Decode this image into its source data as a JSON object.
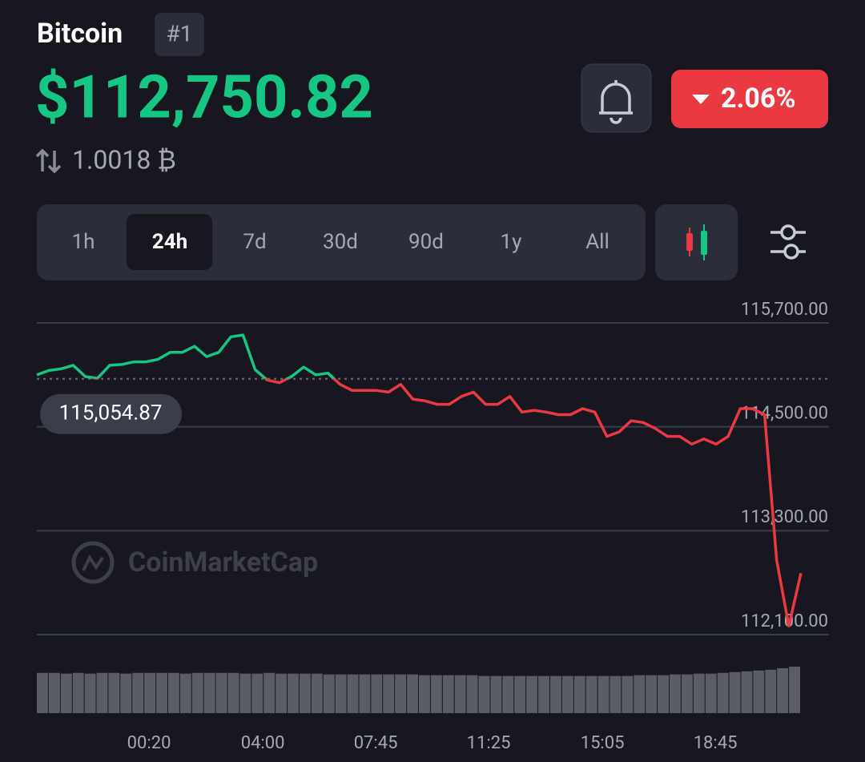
{
  "header": {
    "title": "Bitcoin",
    "rank": "#1",
    "price": "$112,750.82",
    "btc_price": "1.0018 ₿",
    "change": "2.06%"
  },
  "tabs": {
    "items": [
      "1h",
      "24h",
      "7d",
      "30d",
      "90d",
      "1y",
      "All"
    ],
    "active": 1
  },
  "watermark": "CoinMarketCap",
  "chart_data": {
    "type": "line",
    "values": [
      115100,
      115150,
      115170,
      115210,
      115080,
      115060,
      115210,
      115220,
      115250,
      115250,
      115280,
      115360,
      115360,
      115430,
      115310,
      115360,
      115540,
      115560,
      115160,
      115040,
      115010,
      115080,
      115190,
      115100,
      115120,
      114990,
      114920,
      114920,
      114920,
      114900,
      114990,
      114820,
      114800,
      114760,
      114760,
      114850,
      114900,
      114760,
      114760,
      114850,
      114670,
      114690,
      114670,
      114640,
      114640,
      114710,
      114670,
      114390,
      114440,
      114570,
      114550,
      114480,
      114390,
      114390,
      114300,
      114360,
      114300,
      114390,
      114710,
      114710,
      114640,
      112960,
      112200,
      112810
    ],
    "volume": [
      52,
      52,
      51,
      52,
      51,
      52,
      52,
      51,
      52,
      52,
      52,
      52,
      51,
      52,
      52,
      52,
      52,
      51,
      51,
      52,
      51,
      51,
      51,
      51,
      50,
      50,
      50,
      50,
      50,
      50,
      50,
      50,
      49,
      49,
      49,
      49,
      49,
      48,
      48,
      48,
      48,
      48,
      48,
      48,
      48,
      48,
      48,
      48,
      48,
      48,
      49,
      49,
      49,
      50,
      50,
      51,
      51,
      52,
      53,
      54,
      55,
      56,
      58,
      60
    ],
    "ylim": [
      112100,
      115700
    ],
    "yticks": [
      {
        "value": 112100,
        "label": "112,100.00"
      },
      {
        "value": 113300,
        "label": "113,300.00"
      },
      {
        "value": 114500,
        "label": "114,500.00"
      },
      {
        "value": 115700,
        "label": "115,700.00"
      }
    ],
    "xticks": [
      {
        "value": 9.25,
        "label": "00:20"
      },
      {
        "value": 18.63,
        "label": "04:00"
      },
      {
        "value": 27.94,
        "label": "07:45"
      },
      {
        "value": 37.25,
        "label": "11:25"
      },
      {
        "value": 46.63,
        "label": "15:05"
      },
      {
        "value": 55.94,
        "label": "18:45"
      }
    ],
    "baseline": {
      "value": 115054.87,
      "label": "115,054.87"
    },
    "up_color": "#16c784",
    "down_color": "#ea3943",
    "volume_color": "#5a5d66",
    "grid": true
  }
}
